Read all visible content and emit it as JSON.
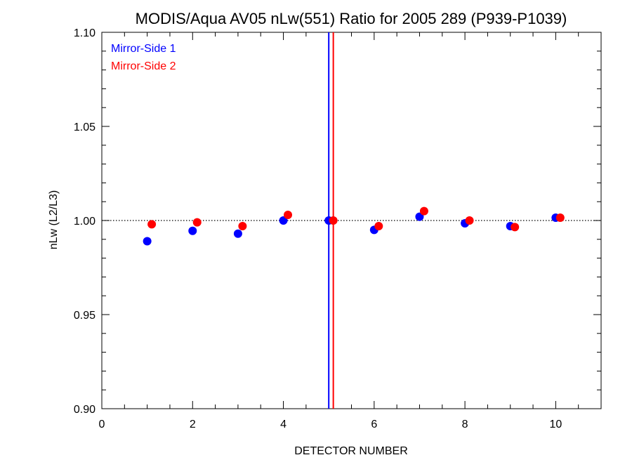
{
  "chart_data": {
    "type": "scatter",
    "title": "MODIS/Aqua AV05 nLw(551) Ratio for 2005 289 (P939-P1039)",
    "xlabel": "DETECTOR NUMBER",
    "ylabel": "nLw (L2/L3)",
    "xlim": [
      0,
      11
    ],
    "ylim": [
      0.9,
      1.1
    ],
    "x_ticks": [
      0,
      2,
      4,
      6,
      8,
      10
    ],
    "x_tick_labels": [
      "0",
      "2",
      "4",
      "6",
      "8",
      "10"
    ],
    "y_ticks": [
      0.9,
      0.95,
      1.0,
      1.05,
      1.1
    ],
    "y_tick_labels": [
      "0.90",
      "0.95",
      "1.00",
      "1.05",
      "1.10"
    ],
    "reference_line_y": 1.0,
    "legend_position": "top-left",
    "series": [
      {
        "name": "Mirror-Side 1",
        "color": "#0000ff",
        "x": [
          1,
          2,
          3,
          4,
          5,
          6,
          7,
          8,
          9,
          10
        ],
        "y": [
          0.989,
          0.9945,
          0.993,
          1.0,
          1.0,
          0.995,
          1.002,
          0.9985,
          0.997,
          1.0015
        ],
        "vertical_line_x": 5.0
      },
      {
        "name": "Mirror-Side 2",
        "color": "#ff0000",
        "x": [
          1.1,
          2.1,
          3.1,
          4.1,
          5.1,
          6.1,
          7.1,
          8.1,
          9.1,
          10.1
        ],
        "y": [
          0.998,
          0.999,
          0.997,
          1.003,
          1.0,
          0.997,
          1.005,
          1.0,
          0.9965,
          1.0015
        ],
        "vertical_line_x": 5.1
      }
    ]
  }
}
